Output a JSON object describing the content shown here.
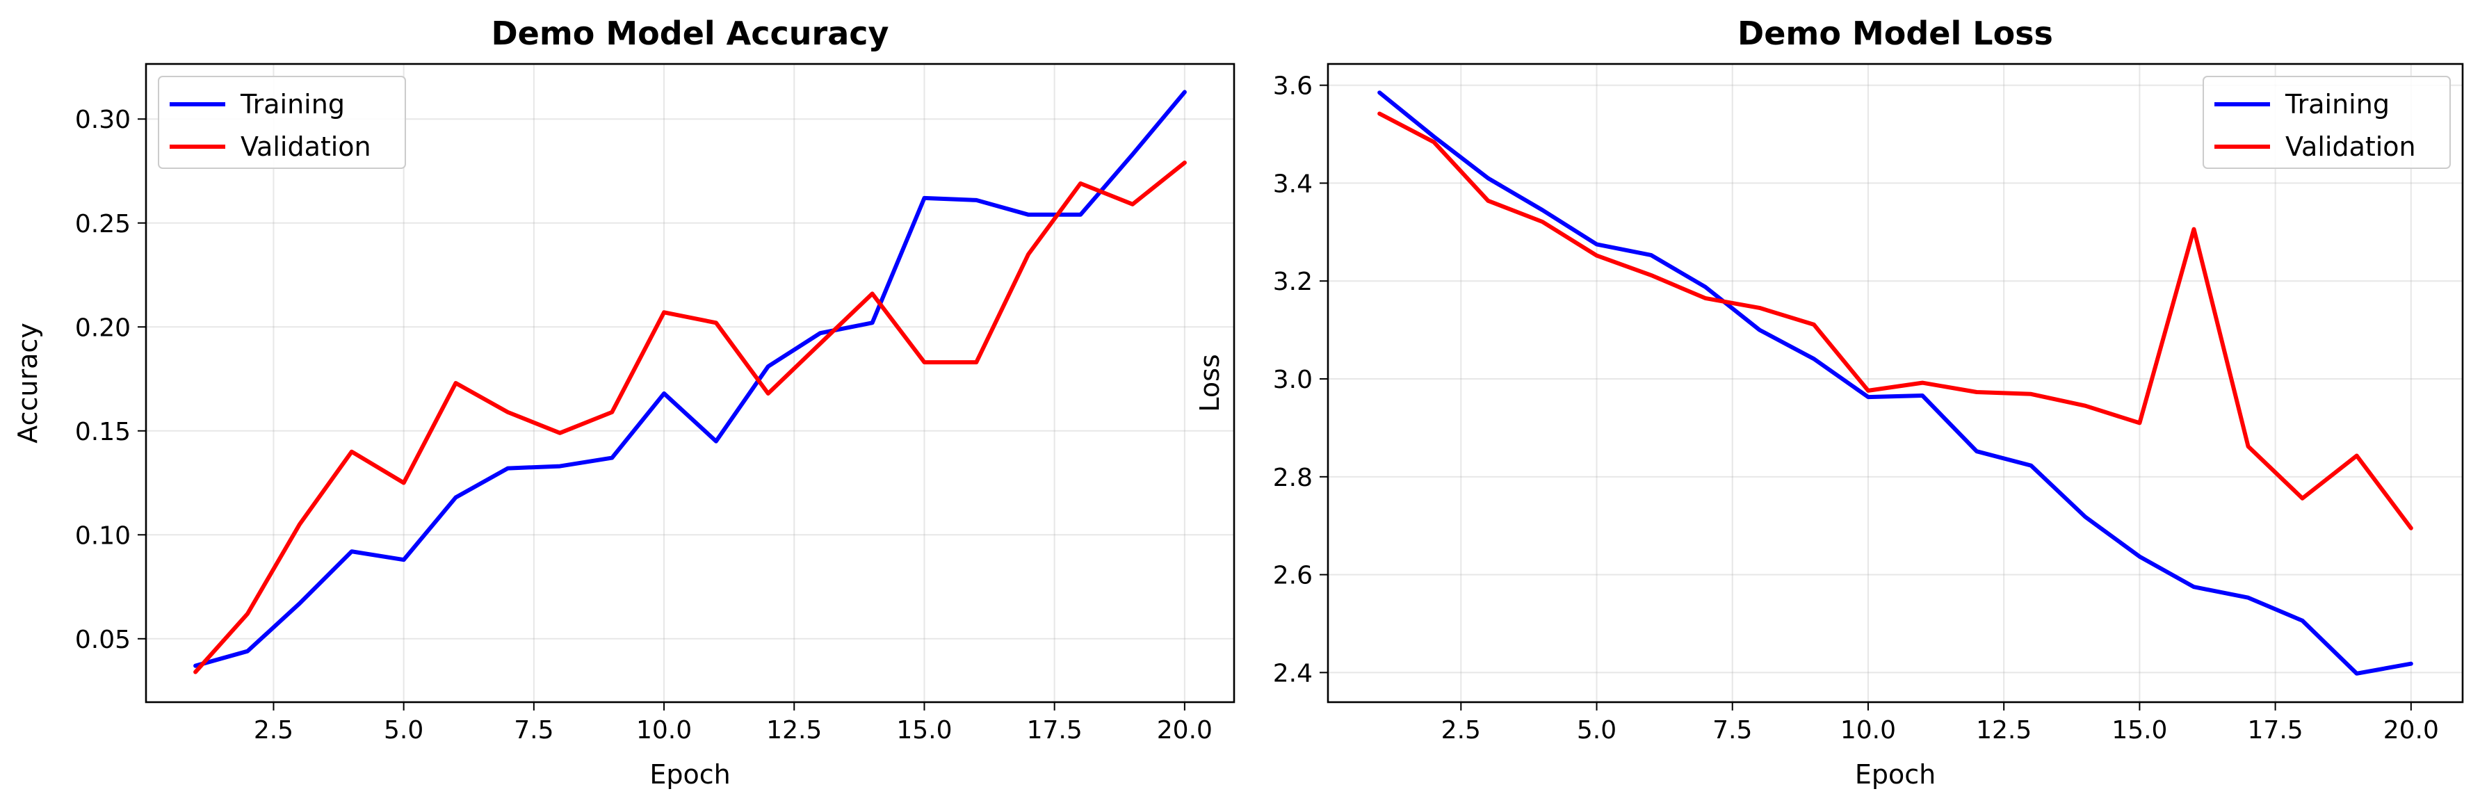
{
  "chart_data": [
    {
      "type": "line",
      "title": "Demo Model Accuracy",
      "xlabel": "Epoch",
      "ylabel": "Accuracy",
      "x": [
        1,
        2,
        3,
        4,
        5,
        6,
        7,
        8,
        9,
        10,
        11,
        12,
        13,
        14,
        15,
        16,
        17,
        18,
        19,
        20
      ],
      "xlim": [
        0.05,
        20.95
      ],
      "ylim": [
        0.0195,
        0.3265
      ],
      "xticks": [
        2.5,
        5.0,
        7.5,
        10.0,
        12.5,
        15.0,
        17.5,
        20.0
      ],
      "xtick_labels": [
        "2.5",
        "5.0",
        "7.5",
        "10.0",
        "12.5",
        "15.0",
        "17.5",
        "20.0"
      ],
      "yticks": [
        0.05,
        0.1,
        0.15,
        0.2,
        0.25,
        0.3
      ],
      "ytick_labels": [
        "0.05",
        "0.10",
        "0.15",
        "0.20",
        "0.25",
        "0.30"
      ],
      "grid": true,
      "legend": "upper-left",
      "series": [
        {
          "name": "Training",
          "color": "#0000ff",
          "values": [
            0.037,
            0.044,
            0.067,
            0.092,
            0.088,
            0.118,
            0.132,
            0.133,
            0.137,
            0.168,
            0.145,
            0.181,
            0.197,
            0.202,
            0.262,
            0.261,
            0.254,
            0.254,
            0.283,
            0.313
          ]
        },
        {
          "name": "Validation",
          "color": "#ff0000",
          "values": [
            0.034,
            0.062,
            0.105,
            0.14,
            0.125,
            0.173,
            0.159,
            0.149,
            0.159,
            0.207,
            0.202,
            0.168,
            0.192,
            0.216,
            0.183,
            0.183,
            0.235,
            0.269,
            0.259,
            0.279
          ]
        }
      ]
    },
    {
      "type": "line",
      "title": "Demo Model Loss",
      "xlabel": "Epoch",
      "ylabel": "Loss",
      "x": [
        1,
        2,
        3,
        4,
        5,
        6,
        7,
        8,
        9,
        10,
        11,
        12,
        13,
        14,
        15,
        16,
        17,
        18,
        19,
        20
      ],
      "xlim": [
        0.05,
        20.95
      ],
      "ylim": [
        2.3395,
        3.6435
      ],
      "xticks": [
        2.5,
        5.0,
        7.5,
        10.0,
        12.5,
        15.0,
        17.5,
        20.0
      ],
      "xtick_labels": [
        "2.5",
        "5.0",
        "7.5",
        "10.0",
        "12.5",
        "15.0",
        "17.5",
        "20.0"
      ],
      "yticks": [
        2.4,
        2.6,
        2.8,
        3.0,
        3.2,
        3.4,
        3.6
      ],
      "ytick_labels": [
        "2.4",
        "2.6",
        "2.8",
        "3.0",
        "3.2",
        "3.4",
        "3.6"
      ],
      "grid": true,
      "legend": "upper-right",
      "series": [
        {
          "name": "Training",
          "color": "#0000ff",
          "values": [
            3.585,
            3.495,
            3.41,
            3.345,
            3.275,
            3.253,
            3.188,
            3.1,
            3.041,
            2.963,
            2.966,
            2.852,
            2.823,
            2.718,
            2.637,
            2.575,
            2.553,
            2.506,
            2.398,
            2.418
          ]
        },
        {
          "name": "Validation",
          "color": "#ff0000",
          "values": [
            3.542,
            3.484,
            3.364,
            3.321,
            3.252,
            3.212,
            3.165,
            3.145,
            3.111,
            2.976,
            2.992,
            2.973,
            2.969,
            2.945,
            2.91,
            3.306,
            2.862,
            2.756,
            2.843,
            2.695
          ]
        }
      ]
    }
  ]
}
